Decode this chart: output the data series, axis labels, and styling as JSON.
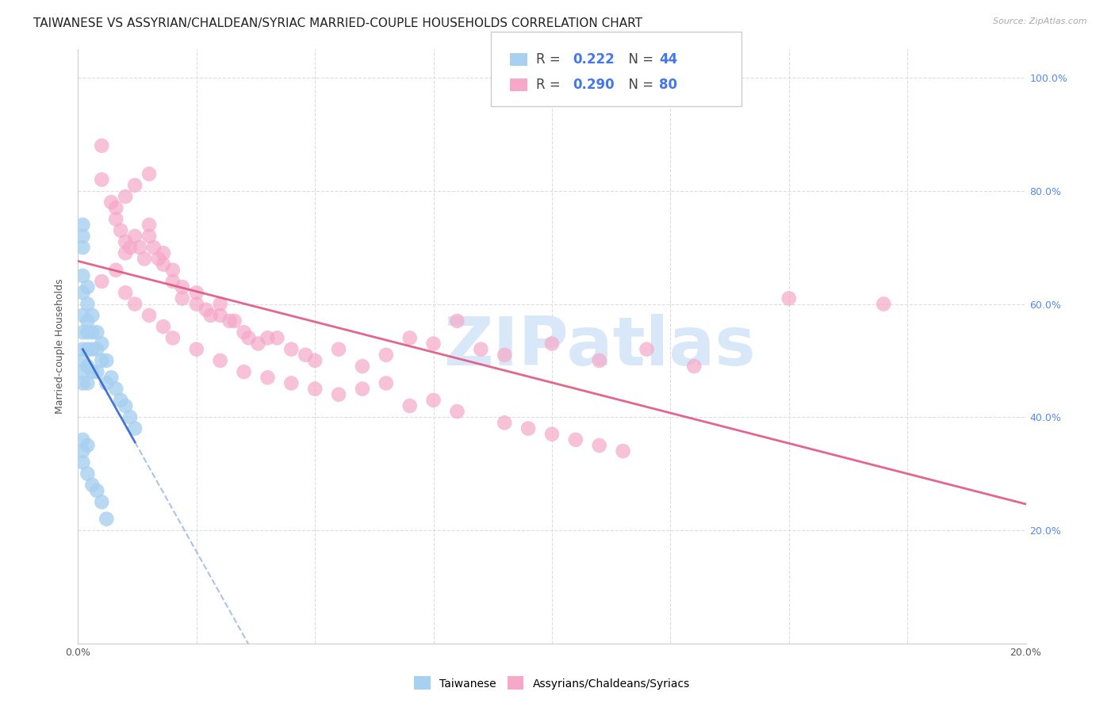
{
  "title": "TAIWANESE VS ASSYRIAN/CHALDEAN/SYRIAC MARRIED-COUPLE HOUSEHOLDS CORRELATION CHART",
  "source": "Source: ZipAtlas.com",
  "ylabel": "Married-couple Households",
  "color_blue": "#a8d0f0",
  "color_pink": "#f5a8c8",
  "trend_color_blue": "#3366cc",
  "trend_color_pink": "#e05580",
  "watermark": "ZIPatlas",
  "watermark_color": "#d8e8f8",
  "legend_label1": "Taiwanese",
  "legend_label2": "Assyrians/Chaldeans/Syriacs",
  "R1": "0.222",
  "N1": "44",
  "R2": "0.290",
  "N2": "80",
  "blue_x": [
    0.001,
    0.001,
    0.001,
    0.001,
    0.001,
    0.001,
    0.001,
    0.001,
    0.001,
    0.001,
    0.001,
    0.002,
    0.002,
    0.002,
    0.002,
    0.002,
    0.002,
    0.002,
    0.003,
    0.003,
    0.003,
    0.003,
    0.004,
    0.004,
    0.004,
    0.005,
    0.005,
    0.006,
    0.006,
    0.007,
    0.008,
    0.009,
    0.01,
    0.011,
    0.012,
    0.001,
    0.001,
    0.001,
    0.002,
    0.002,
    0.003,
    0.004,
    0.005,
    0.006
  ],
  "blue_y": [
    0.74,
    0.72,
    0.7,
    0.65,
    0.62,
    0.58,
    0.55,
    0.52,
    0.5,
    0.48,
    0.46,
    0.63,
    0.6,
    0.57,
    0.55,
    0.52,
    0.49,
    0.46,
    0.58,
    0.55,
    0.52,
    0.48,
    0.55,
    0.52,
    0.48,
    0.53,
    0.5,
    0.5,
    0.46,
    0.47,
    0.45,
    0.43,
    0.42,
    0.4,
    0.38,
    0.36,
    0.34,
    0.32,
    0.35,
    0.3,
    0.28,
    0.27,
    0.25,
    0.22
  ],
  "pink_x": [
    0.005,
    0.005,
    0.007,
    0.008,
    0.009,
    0.01,
    0.01,
    0.011,
    0.012,
    0.013,
    0.014,
    0.015,
    0.015,
    0.016,
    0.017,
    0.018,
    0.018,
    0.02,
    0.02,
    0.022,
    0.022,
    0.025,
    0.025,
    0.027,
    0.028,
    0.03,
    0.03,
    0.032,
    0.033,
    0.035,
    0.036,
    0.038,
    0.04,
    0.042,
    0.045,
    0.048,
    0.05,
    0.055,
    0.06,
    0.065,
    0.07,
    0.075,
    0.08,
    0.085,
    0.09,
    0.1,
    0.11,
    0.12,
    0.13,
    0.15,
    0.005,
    0.008,
    0.01,
    0.012,
    0.015,
    0.018,
    0.02,
    0.025,
    0.03,
    0.035,
    0.04,
    0.045,
    0.05,
    0.055,
    0.06,
    0.065,
    0.07,
    0.075,
    0.08,
    0.17,
    0.09,
    0.095,
    0.1,
    0.105,
    0.11,
    0.115,
    0.008,
    0.01,
    0.012,
    0.015
  ],
  "pink_y": [
    0.88,
    0.82,
    0.78,
    0.75,
    0.73,
    0.71,
    0.69,
    0.7,
    0.72,
    0.7,
    0.68,
    0.74,
    0.72,
    0.7,
    0.68,
    0.67,
    0.69,
    0.66,
    0.64,
    0.63,
    0.61,
    0.6,
    0.62,
    0.59,
    0.58,
    0.6,
    0.58,
    0.57,
    0.57,
    0.55,
    0.54,
    0.53,
    0.54,
    0.54,
    0.52,
    0.51,
    0.5,
    0.52,
    0.49,
    0.51,
    0.54,
    0.53,
    0.57,
    0.52,
    0.51,
    0.53,
    0.5,
    0.52,
    0.49,
    0.61,
    0.64,
    0.66,
    0.62,
    0.6,
    0.58,
    0.56,
    0.54,
    0.52,
    0.5,
    0.48,
    0.47,
    0.46,
    0.45,
    0.44,
    0.45,
    0.46,
    0.42,
    0.43,
    0.41,
    0.6,
    0.39,
    0.38,
    0.37,
    0.36,
    0.35,
    0.34,
    0.77,
    0.79,
    0.81,
    0.83
  ],
  "xlim": [
    0.0,
    0.2
  ],
  "ylim": [
    0.0,
    1.05
  ],
  "xtick_positions": [
    0.0,
    0.025,
    0.05,
    0.075,
    0.1,
    0.125,
    0.15,
    0.175,
    0.2
  ],
  "ytick_positions": [
    0.0,
    0.2,
    0.4,
    0.6,
    0.8,
    1.0
  ],
  "right_ytick_labels": [
    "",
    "20.0%",
    "40.0%",
    "60.0%",
    "80.0%",
    "100.0%"
  ],
  "title_fontsize": 11,
  "tick_fontsize": 9,
  "axis_label_fontsize": 9,
  "blue_line_x0": 0.0,
  "blue_line_x1": 0.013,
  "pink_line_x0": 0.0,
  "pink_line_x1": 0.2
}
